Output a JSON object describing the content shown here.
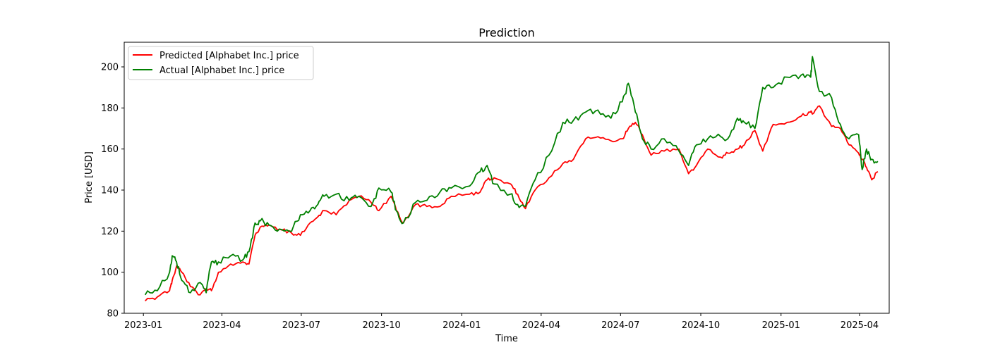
{
  "chart_data": {
    "type": "line",
    "title": "Prediction",
    "xlabel": "Time",
    "ylabel": "Price [USD]",
    "xlim": [
      "2022-12-10",
      "2025-05-05"
    ],
    "ylim": [
      80,
      212
    ],
    "yticks": [
      80,
      100,
      120,
      140,
      160,
      180,
      200
    ],
    "xticks": [
      {
        "date": "2023-01-01",
        "label": "2023-01"
      },
      {
        "date": "2023-04-01",
        "label": "2023-04"
      },
      {
        "date": "2023-07-01",
        "label": "2023-07"
      },
      {
        "date": "2023-10-01",
        "label": "2023-10"
      },
      {
        "date": "2024-01-01",
        "label": "2024-01"
      },
      {
        "date": "2024-04-01",
        "label": "2024-04"
      },
      {
        "date": "2024-07-01",
        "label": "2024-07"
      },
      {
        "date": "2024-10-01",
        "label": "2024-10"
      },
      {
        "date": "2025-01-01",
        "label": "2025-01"
      },
      {
        "date": "2025-04-01",
        "label": "2025-04"
      }
    ],
    "grid": false,
    "legend_position": "top-left",
    "x": [
      "2023-01-03",
      "2023-01-17",
      "2023-01-31",
      "2023-02-03",
      "2023-02-08",
      "2023-02-14",
      "2023-02-24",
      "2023-03-07",
      "2023-03-14",
      "2023-03-20",
      "2023-03-28",
      "2023-04-11",
      "2023-04-25",
      "2023-05-02",
      "2023-05-09",
      "2023-05-15",
      "2023-05-25",
      "2023-06-06",
      "2023-06-20",
      "2023-06-30",
      "2023-07-11",
      "2023-07-20",
      "2023-07-27",
      "2023-08-10",
      "2023-08-25",
      "2023-09-05",
      "2023-09-19",
      "2023-09-28",
      "2023-10-12",
      "2023-10-18",
      "2023-10-26",
      "2023-11-09",
      "2023-11-22",
      "2023-12-07",
      "2023-12-20",
      "2024-01-10",
      "2024-01-22",
      "2024-01-30",
      "2024-02-07",
      "2024-02-26",
      "2024-03-05",
      "2024-03-14",
      "2024-03-25",
      "2024-04-10",
      "2024-04-26",
      "2024-05-08",
      "2024-05-22",
      "2024-06-05",
      "2024-06-20",
      "2024-07-03",
      "2024-07-10",
      "2024-07-18",
      "2024-07-26",
      "2024-08-05",
      "2024-08-20",
      "2024-09-06",
      "2024-09-17",
      "2024-09-26",
      "2024-10-09",
      "2024-10-24",
      "2024-11-01",
      "2024-11-12",
      "2024-11-20",
      "2024-12-02",
      "2024-12-11",
      "2024-12-23",
      "2025-01-08",
      "2025-01-24",
      "2025-02-04",
      "2025-02-06",
      "2025-02-14",
      "2025-02-28",
      "2025-03-10",
      "2025-03-20",
      "2025-03-31",
      "2025-04-04",
      "2025-04-09",
      "2025-04-15",
      "2025-04-22"
    ],
    "series": [
      {
        "name": "Predicted [Alphabet Inc.] price",
        "color": "#ff0000",
        "values": [
          86,
          88,
          91,
          96,
          103,
          100,
          93,
          89,
          92,
          91,
          100,
          104,
          105,
          104,
          118,
          122,
          123,
          121,
          119,
          118,
          124,
          127,
          130,
          128,
          135,
          137,
          134,
          130,
          137,
          130,
          124,
          133,
          132,
          132,
          137,
          138,
          139,
          145,
          146,
          143,
          138,
          131,
          140,
          146,
          153,
          155,
          165,
          166,
          164,
          165,
          170,
          173,
          167,
          157,
          159,
          160,
          148,
          152,
          160,
          156,
          158,
          160,
          162,
          169,
          159,
          172,
          173,
          176,
          178,
          177,
          181,
          171,
          170,
          162,
          158,
          155,
          151,
          145,
          149
        ]
      },
      {
        "name": "Actual [Alphabet Inc.] price",
        "color": "#008000",
        "values": [
          89,
          91,
          100,
          108,
          105,
          96,
          90,
          95,
          90,
          105,
          105,
          108,
          106,
          110,
          124,
          125,
          123,
          121,
          120,
          128,
          130,
          133,
          137,
          138,
          135,
          137,
          132,
          141,
          139,
          130,
          124,
          134,
          135,
          139,
          141,
          142,
          149,
          152,
          143,
          138,
          133,
          132,
          145,
          157,
          173,
          174,
          178,
          179,
          175,
          183,
          192,
          178,
          165,
          160,
          165,
          159,
          152,
          162,
          165,
          166,
          165,
          175,
          173,
          170,
          190,
          190,
          195,
          196,
          195,
          205,
          188,
          185,
          172,
          165,
          167,
          150,
          160,
          155,
          154
        ]
      }
    ]
  }
}
